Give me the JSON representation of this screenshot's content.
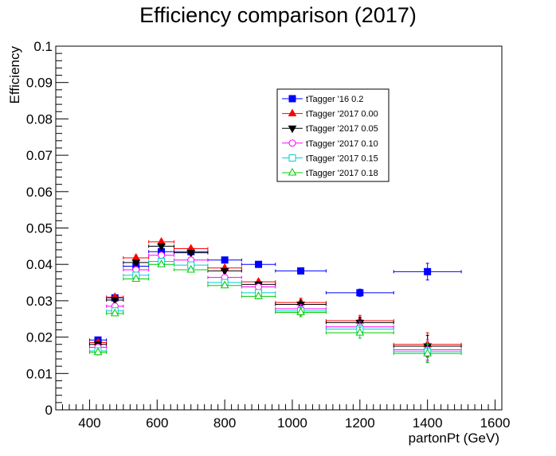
{
  "chart_data": {
    "type": "scatter",
    "title": "Efficiency comparison (2017)",
    "xlabel": "partonPt (GeV)",
    "ylabel": "Efficiency",
    "xlim": [
      300,
      1620
    ],
    "ylim": [
      0,
      0.1
    ],
    "x_ticks": [
      "400",
      "600",
      "800",
      "1000",
      "1200",
      "1400",
      "1600"
    ],
    "x_tick_values": [
      400,
      600,
      800,
      1000,
      1200,
      1400,
      1600
    ],
    "y_ticks": [
      "0",
      "0.01",
      "0.02",
      "0.03",
      "0.04",
      "0.05",
      "0.06",
      "0.07",
      "0.08",
      "0.09",
      "0.1"
    ],
    "y_tick_values": [
      0,
      0.01,
      0.02,
      0.03,
      0.04,
      0.05,
      0.06,
      0.07,
      0.08,
      0.09,
      0.1
    ],
    "grid": false,
    "legend_position": "top-center",
    "bins_2017": {
      "x": [
        425,
        475,
        537.5,
        612.5,
        700,
        800,
        900,
        1025,
        1200,
        1400
      ],
      "xerr": [
        25,
        25,
        37.5,
        37.5,
        50,
        50,
        50,
        75,
        100,
        100
      ]
    },
    "series": [
      {
        "name": "tTagger '16 0.2",
        "color": "#0000ff",
        "marker": "square-filled",
        "x": [
          425,
          475,
          537.5,
          612.5,
          700,
          800,
          900,
          1025,
          1200,
          1400
        ],
        "xerr": [
          25,
          25,
          37.5,
          37.5,
          50,
          50,
          50,
          75,
          100,
          100
        ],
        "values": [
          0.0192,
          0.0308,
          0.0395,
          0.0435,
          0.0435,
          0.0412,
          0.04,
          0.0382,
          0.0322,
          0.038
        ],
        "yerr": [
          0.0007,
          0.0006,
          0.0006,
          0.0006,
          0.0006,
          0.0006,
          0.0006,
          0.0006,
          0.001,
          0.0023
        ]
      },
      {
        "name": "tTagger '2017 0.00",
        "color": "#ff0000",
        "marker": "triangle-up-filled",
        "values": [
          0.0185,
          0.031,
          0.0418,
          0.0462,
          0.0443,
          0.039,
          0.0352,
          0.0295,
          0.0245,
          0.018
        ],
        "yerr": [
          0.0007,
          0.0006,
          0.0006,
          0.0006,
          0.0006,
          0.0006,
          0.0007,
          0.0012,
          0.0015,
          0.0032
        ]
      },
      {
        "name": "tTagger '2017 0.05",
        "color": "#000000",
        "marker": "triangle-down-filled",
        "values": [
          0.018,
          0.0302,
          0.0405,
          0.045,
          0.0432,
          0.0382,
          0.0345,
          0.029,
          0.024,
          0.0175
        ],
        "yerr": [
          0.0007,
          0.0006,
          0.0006,
          0.0006,
          0.0006,
          0.0006,
          0.0007,
          0.0012,
          0.0015,
          0.003
        ]
      },
      {
        "name": "tTagger '2017 0.10",
        "color": "#ff00ff",
        "marker": "circle-open",
        "values": [
          0.0172,
          0.0285,
          0.0385,
          0.0425,
          0.0412,
          0.0364,
          0.0338,
          0.0278,
          0.0228,
          0.0165
        ],
        "yerr": [
          0.0007,
          0.0006,
          0.0006,
          0.0006,
          0.0006,
          0.0006,
          0.0007,
          0.0012,
          0.0015,
          0.0028
        ]
      },
      {
        "name": "tTagger '2017 0.15",
        "color": "#00cccc",
        "marker": "square-open",
        "values": [
          0.0162,
          0.0272,
          0.037,
          0.0408,
          0.0398,
          0.035,
          0.0322,
          0.0272,
          0.0222,
          0.016
        ],
        "yerr": [
          0.0007,
          0.0006,
          0.0006,
          0.0006,
          0.0006,
          0.0006,
          0.0007,
          0.0012,
          0.0015,
          0.0027
        ]
      },
      {
        "name": "tTagger '2017 0.18",
        "color": "#00cc00",
        "marker": "triangle-up-open",
        "values": [
          0.0158,
          0.0265,
          0.036,
          0.04,
          0.0385,
          0.0342,
          0.0312,
          0.0268,
          0.0212,
          0.0155
        ],
        "yerr": [
          0.0007,
          0.0006,
          0.0006,
          0.0006,
          0.0006,
          0.0006,
          0.0007,
          0.0012,
          0.0015,
          0.0025
        ]
      }
    ]
  }
}
